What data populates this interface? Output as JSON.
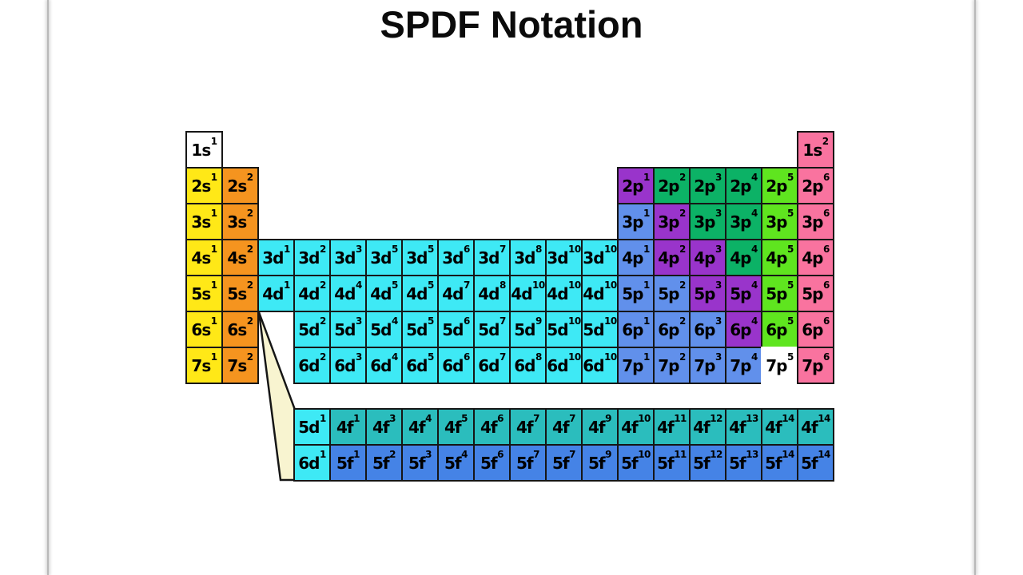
{
  "title": "SPDF Notation",
  "colors": {
    "white": "#FFFFFF",
    "yellow": "#FFE817",
    "orange": "#F5941F",
    "cyan": "#3EE9F5",
    "teal": "#2BBDBD",
    "blue": "#6190EB",
    "fblue": "#4583E6",
    "purple": "#9934CB",
    "green": "#0CB266",
    "lime": "#5FE51F",
    "pink": "#F9739F",
    "wedge": "#F8F4D0",
    "border": "#161616"
  },
  "grid": {
    "rows": [
      {
        "name": "period-1",
        "cells": [
          {
            "col": 1,
            "base": "1s",
            "sup": "1",
            "color": "white"
          },
          {
            "col": 18,
            "base": "1s",
            "sup": "2",
            "color": "pink"
          }
        ]
      },
      {
        "name": "period-2",
        "cells": [
          {
            "col": 1,
            "base": "2s",
            "sup": "1",
            "color": "yellow"
          },
          {
            "col": 2,
            "base": "2s",
            "sup": "2",
            "color": "orange"
          },
          {
            "col": 13,
            "base": "2p",
            "sup": "1",
            "color": "purple"
          },
          {
            "col": 14,
            "base": "2p",
            "sup": "2",
            "color": "green"
          },
          {
            "col": 15,
            "base": "2p",
            "sup": "3",
            "color": "green"
          },
          {
            "col": 16,
            "base": "2p",
            "sup": "4",
            "color": "green"
          },
          {
            "col": 17,
            "base": "2p",
            "sup": "5",
            "color": "lime"
          },
          {
            "col": 18,
            "base": "2p",
            "sup": "6",
            "color": "pink"
          }
        ]
      },
      {
        "name": "period-3",
        "cells": [
          {
            "col": 1,
            "base": "3s",
            "sup": "1",
            "color": "yellow"
          },
          {
            "col": 2,
            "base": "3s",
            "sup": "2",
            "color": "orange"
          },
          {
            "col": 13,
            "base": "3p",
            "sup": "1",
            "color": "blue"
          },
          {
            "col": 14,
            "base": "3p",
            "sup": "2",
            "color": "purple"
          },
          {
            "col": 15,
            "base": "3p",
            "sup": "3",
            "color": "green"
          },
          {
            "col": 16,
            "base": "3p",
            "sup": "4",
            "color": "green"
          },
          {
            "col": 17,
            "base": "3p",
            "sup": "5",
            "color": "lime"
          },
          {
            "col": 18,
            "base": "3p",
            "sup": "6",
            "color": "pink"
          }
        ]
      },
      {
        "name": "period-4",
        "cells": [
          {
            "col": 1,
            "base": "4s",
            "sup": "1",
            "color": "yellow"
          },
          {
            "col": 2,
            "base": "4s",
            "sup": "2",
            "color": "orange"
          },
          {
            "col": 3,
            "base": "3d",
            "sup": "1",
            "color": "cyan"
          },
          {
            "col": 4,
            "base": "3d",
            "sup": "2",
            "color": "cyan"
          },
          {
            "col": 5,
            "base": "3d",
            "sup": "3",
            "color": "cyan"
          },
          {
            "col": 6,
            "base": "3d",
            "sup": "5",
            "color": "cyan"
          },
          {
            "col": 7,
            "base": "3d",
            "sup": "5",
            "color": "cyan"
          },
          {
            "col": 8,
            "base": "3d",
            "sup": "6",
            "color": "cyan"
          },
          {
            "col": 9,
            "base": "3d",
            "sup": "7",
            "color": "cyan"
          },
          {
            "col": 10,
            "base": "3d",
            "sup": "8",
            "color": "cyan"
          },
          {
            "col": 11,
            "base": "3d",
            "sup": "10",
            "color": "cyan"
          },
          {
            "col": 12,
            "base": "3d",
            "sup": "10",
            "color": "cyan"
          },
          {
            "col": 13,
            "base": "4p",
            "sup": "1",
            "color": "blue"
          },
          {
            "col": 14,
            "base": "4p",
            "sup": "2",
            "color": "purple"
          },
          {
            "col": 15,
            "base": "4p",
            "sup": "3",
            "color": "purple"
          },
          {
            "col": 16,
            "base": "4p",
            "sup": "4",
            "color": "green"
          },
          {
            "col": 17,
            "base": "4p",
            "sup": "5",
            "color": "lime"
          },
          {
            "col": 18,
            "base": "4p",
            "sup": "6",
            "color": "pink"
          }
        ]
      },
      {
        "name": "period-5",
        "cells": [
          {
            "col": 1,
            "base": "5s",
            "sup": "1",
            "color": "yellow"
          },
          {
            "col": 2,
            "base": "5s",
            "sup": "2",
            "color": "orange"
          },
          {
            "col": 3,
            "base": "4d",
            "sup": "1",
            "color": "cyan"
          },
          {
            "col": 4,
            "base": "4d",
            "sup": "2",
            "color": "cyan"
          },
          {
            "col": 5,
            "base": "4d",
            "sup": "4",
            "color": "cyan"
          },
          {
            "col": 6,
            "base": "4d",
            "sup": "5",
            "color": "cyan"
          },
          {
            "col": 7,
            "base": "4d",
            "sup": "5",
            "color": "cyan"
          },
          {
            "col": 8,
            "base": "4d",
            "sup": "7",
            "color": "cyan"
          },
          {
            "col": 9,
            "base": "4d",
            "sup": "8",
            "color": "cyan"
          },
          {
            "col": 10,
            "base": "4d",
            "sup": "10",
            "color": "cyan"
          },
          {
            "col": 11,
            "base": "4d",
            "sup": "10",
            "color": "cyan"
          },
          {
            "col": 12,
            "base": "4d",
            "sup": "10",
            "color": "cyan"
          },
          {
            "col": 13,
            "base": "5p",
            "sup": "1",
            "color": "blue"
          },
          {
            "col": 14,
            "base": "5p",
            "sup": "2",
            "color": "blue"
          },
          {
            "col": 15,
            "base": "5p",
            "sup": "3",
            "color": "purple"
          },
          {
            "col": 16,
            "base": "5p",
            "sup": "4",
            "color": "purple"
          },
          {
            "col": 17,
            "base": "5p",
            "sup": "5",
            "color": "lime"
          },
          {
            "col": 18,
            "base": "5p",
            "sup": "6",
            "color": "pink"
          }
        ]
      },
      {
        "name": "period-6",
        "cells": [
          {
            "col": 1,
            "base": "6s",
            "sup": "1",
            "color": "yellow"
          },
          {
            "col": 2,
            "base": "6s",
            "sup": "2",
            "color": "orange"
          },
          {
            "col": 4,
            "base": "5d",
            "sup": "2",
            "color": "cyan"
          },
          {
            "col": 5,
            "base": "5d",
            "sup": "3",
            "color": "cyan"
          },
          {
            "col": 6,
            "base": "5d",
            "sup": "4",
            "color": "cyan"
          },
          {
            "col": 7,
            "base": "5d",
            "sup": "5",
            "color": "cyan"
          },
          {
            "col": 8,
            "base": "5d",
            "sup": "6",
            "color": "cyan"
          },
          {
            "col": 9,
            "base": "5d",
            "sup": "7",
            "color": "cyan"
          },
          {
            "col": 10,
            "base": "5d",
            "sup": "9",
            "color": "cyan"
          },
          {
            "col": 11,
            "base": "5d",
            "sup": "10",
            "color": "cyan"
          },
          {
            "col": 12,
            "base": "5d",
            "sup": "10",
            "color": "cyan"
          },
          {
            "col": 13,
            "base": "6p",
            "sup": "1",
            "color": "blue"
          },
          {
            "col": 14,
            "base": "6p",
            "sup": "2",
            "color": "blue"
          },
          {
            "col": 15,
            "base": "6p",
            "sup": "3",
            "color": "blue"
          },
          {
            "col": 16,
            "base": "6p",
            "sup": "4",
            "color": "purple"
          },
          {
            "col": 17,
            "base": "6p",
            "sup": "5",
            "color": "lime"
          },
          {
            "col": 18,
            "base": "6p",
            "sup": "6",
            "color": "pink"
          }
        ]
      },
      {
        "name": "period-7",
        "cells": [
          {
            "col": 1,
            "base": "7s",
            "sup": "1",
            "color": "yellow"
          },
          {
            "col": 2,
            "base": "7s",
            "sup": "2",
            "color": "orange"
          },
          {
            "col": 4,
            "base": "6d",
            "sup": "2",
            "color": "cyan"
          },
          {
            "col": 5,
            "base": "6d",
            "sup": "3",
            "color": "cyan"
          },
          {
            "col": 6,
            "base": "6d",
            "sup": "4",
            "color": "cyan"
          },
          {
            "col": 7,
            "base": "6d",
            "sup": "5",
            "color": "cyan"
          },
          {
            "col": 8,
            "base": "6d",
            "sup": "6",
            "color": "cyan"
          },
          {
            "col": 9,
            "base": "6d",
            "sup": "7",
            "color": "cyan"
          },
          {
            "col": 10,
            "base": "6d",
            "sup": "8",
            "color": "cyan"
          },
          {
            "col": 11,
            "base": "6d",
            "sup": "10",
            "color": "cyan"
          },
          {
            "col": 12,
            "base": "6d",
            "sup": "10",
            "color": "cyan"
          },
          {
            "col": 13,
            "base": "7p",
            "sup": "1",
            "color": "blue"
          },
          {
            "col": 14,
            "base": "7p",
            "sup": "2",
            "color": "blue"
          },
          {
            "col": 15,
            "base": "7p",
            "sup": "3",
            "color": "blue"
          },
          {
            "col": 16,
            "base": "7p",
            "sup": "4",
            "color": "blue"
          },
          {
            "col": 17,
            "base": "7p",
            "sup": "5",
            "color": "white",
            "open": true
          },
          {
            "col": 18,
            "base": "7p",
            "sup": "6",
            "color": "pink"
          }
        ]
      }
    ],
    "f_rows": [
      {
        "name": "lanthanide-row",
        "cells": [
          {
            "col": 4,
            "base": "5d",
            "sup": "1",
            "color": "cyan"
          },
          {
            "col": 5,
            "base": "4f",
            "sup": "1",
            "color": "teal"
          },
          {
            "col": 6,
            "base": "4f",
            "sup": "3",
            "color": "teal"
          },
          {
            "col": 7,
            "base": "4f",
            "sup": "4",
            "color": "teal"
          },
          {
            "col": 8,
            "base": "4f",
            "sup": "5",
            "color": "teal"
          },
          {
            "col": 9,
            "base": "4f",
            "sup": "6",
            "color": "teal"
          },
          {
            "col": 10,
            "base": "4f",
            "sup": "7",
            "color": "teal"
          },
          {
            "col": 11,
            "base": "4f",
            "sup": "7",
            "color": "teal"
          },
          {
            "col": 12,
            "base": "4f",
            "sup": "9",
            "color": "teal"
          },
          {
            "col": 13,
            "base": "4f",
            "sup": "10",
            "color": "teal"
          },
          {
            "col": 14,
            "base": "4f",
            "sup": "11",
            "color": "teal"
          },
          {
            "col": 15,
            "base": "4f",
            "sup": "12",
            "color": "teal"
          },
          {
            "col": 16,
            "base": "4f",
            "sup": "13",
            "color": "teal"
          },
          {
            "col": 17,
            "base": "4f",
            "sup": "14",
            "color": "teal"
          },
          {
            "col": 18,
            "base": "4f",
            "sup": "14",
            "color": "teal"
          }
        ]
      },
      {
        "name": "actinide-row",
        "cells": [
          {
            "col": 4,
            "base": "6d",
            "sup": "1",
            "color": "cyan"
          },
          {
            "col": 5,
            "base": "5f",
            "sup": "1",
            "color": "fblue"
          },
          {
            "col": 6,
            "base": "5f",
            "sup": "2",
            "color": "fblue"
          },
          {
            "col": 7,
            "base": "5f",
            "sup": "3",
            "color": "fblue"
          },
          {
            "col": 8,
            "base": "5f",
            "sup": "4",
            "color": "fblue"
          },
          {
            "col": 9,
            "base": "5f",
            "sup": "6",
            "color": "fblue"
          },
          {
            "col": 10,
            "base": "5f",
            "sup": "7",
            "color": "fblue"
          },
          {
            "col": 11,
            "base": "5f",
            "sup": "7",
            "color": "fblue"
          },
          {
            "col": 12,
            "base": "5f",
            "sup": "9",
            "color": "fblue"
          },
          {
            "col": 13,
            "base": "5f",
            "sup": "10",
            "color": "fblue"
          },
          {
            "col": 14,
            "base": "5f",
            "sup": "11",
            "color": "fblue"
          },
          {
            "col": 15,
            "base": "5f",
            "sup": "12",
            "color": "fblue"
          },
          {
            "col": 16,
            "base": "5f",
            "sup": "13",
            "color": "fblue"
          },
          {
            "col": 17,
            "base": "5f",
            "sup": "14",
            "color": "fblue"
          },
          {
            "col": 18,
            "base": "5f",
            "sup": "14",
            "color": "fblue"
          }
        ]
      }
    ]
  }
}
